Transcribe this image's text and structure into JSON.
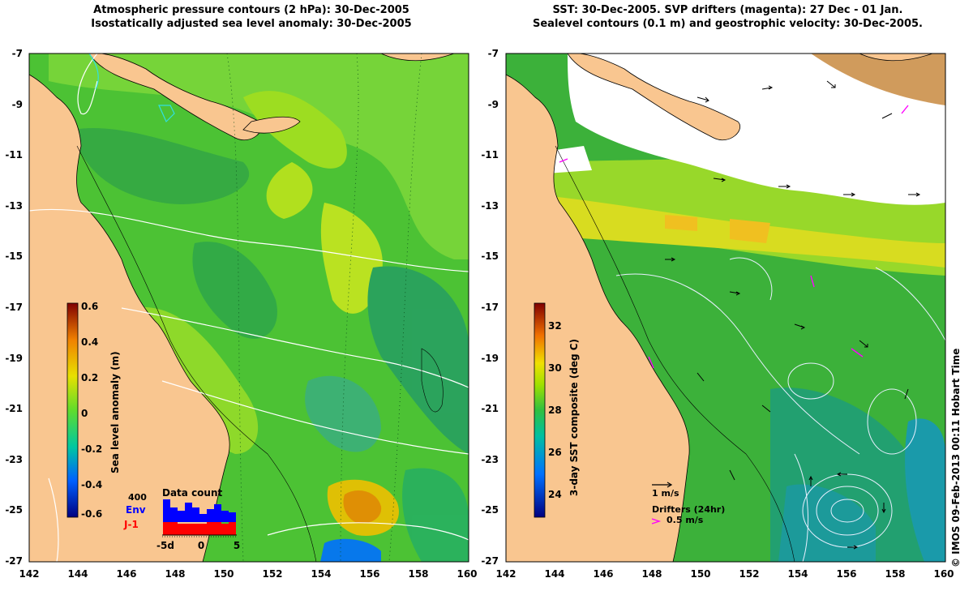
{
  "left_panel": {
    "title_line1": "Atmospheric pressure contours (2 hPa): 30-Dec-2005",
    "title_line2": "Isostatically adjusted sea level anomaly: 30-Dec-2005",
    "colorbar": {
      "label": "Sea level anomaly (m)",
      "ticks": [
        "0.6",
        "0.4",
        "0.2",
        "0",
        "-0.2",
        "-0.4",
        "-0.6"
      ]
    },
    "data_count": {
      "title": "Data count",
      "max_label": "400",
      "env_label": "Env",
      "j1_label": "J-1",
      "x_ticks": [
        "-5d",
        "0",
        "5"
      ],
      "env_color": "#0000ff",
      "j1_color": "#ff0000"
    }
  },
  "right_panel": {
    "title_line1": "SST: 30-Dec-2005. SVP drifters (magenta): 27 Dec - 01 Jan.",
    "title_line2": "Sealevel contours (0.1 m) and geostrophic velocity: 30-Dec-2005.",
    "colorbar": {
      "label": "3-day SST composite (deg C)",
      "ticks": [
        "32",
        "30",
        "28",
        "26",
        "24"
      ]
    },
    "velocity_legend": "1 m/s",
    "drifter_legend_title": "Drifters (24hr)",
    "drifter_legend_speed": "0.5 m/s",
    "drifter_color": "#ff00ff"
  },
  "axes": {
    "x_ticks": [
      "142",
      "144",
      "146",
      "148",
      "150",
      "152",
      "154",
      "156",
      "158",
      "160"
    ],
    "y_ticks": [
      "-7",
      "-9",
      "-11",
      "-13",
      "-15",
      "-17",
      "-19",
      "-21",
      "-23",
      "-25",
      "-27"
    ],
    "lon_range": [
      142,
      160
    ],
    "lat_range": [
      -27,
      -7
    ]
  },
  "colors": {
    "land": "#f9c690",
    "ocean_base": "#3dbb2c",
    "cloud": "#ffffff",
    "pressure_contour": "#ffffff",
    "sealevel_contour": "#ffffff"
  },
  "credit": "© IMOS 09-Feb-2013 00:11 Hobart Time"
}
